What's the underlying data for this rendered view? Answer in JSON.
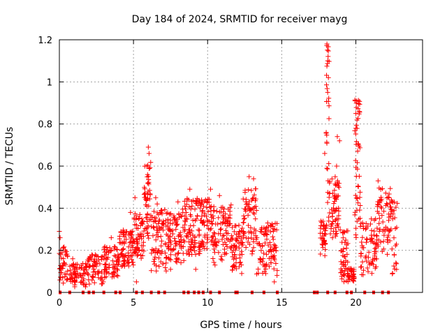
{
  "chart_data": {
    "type": "scatter",
    "title": "Day 184 of 2024, SRMTID for receiver mayg",
    "xlabel": "GPS time / hours",
    "ylabel": "SRMTID / TECUs",
    "xlim": [
      0,
      24.5
    ],
    "ylim": [
      0,
      1.2
    ],
    "x_ticks": [
      0,
      5,
      10,
      15,
      20
    ],
    "y_ticks": [
      0,
      0.2,
      0.4,
      0.6,
      0.8,
      1,
      1.2
    ],
    "grid": true,
    "marker": "plus",
    "color": "#ff0000",
    "series": [
      {
        "name": "SRMTID",
        "segments": [
          {
            "x0": 0.0,
            "x1": 0.6,
            "lo": 0.04,
            "hi": 0.22,
            "n": 40,
            "spikes": [
              [
                0.0,
                0.29
              ],
              [
                0.05,
                0.26
              ],
              [
                0.4,
                0.2
              ]
            ]
          },
          {
            "x0": 0.7,
            "x1": 1.9,
            "lo": 0.02,
            "hi": 0.14,
            "n": 70,
            "spikes": [
              [
                0.9,
                0.16
              ]
            ]
          },
          {
            "x0": 1.9,
            "x1": 3.0,
            "lo": 0.03,
            "hi": 0.18,
            "n": 60,
            "spikes": []
          },
          {
            "x0": 3.0,
            "x1": 4.0,
            "lo": 0.07,
            "hi": 0.22,
            "n": 70,
            "spikes": [
              [
                3.5,
                0.26
              ]
            ]
          },
          {
            "x0": 4.0,
            "x1": 5.0,
            "lo": 0.12,
            "hi": 0.3,
            "n": 80,
            "spikes": [
              [
                4.8,
                0.38
              ]
            ]
          },
          {
            "x0": 5.0,
            "x1": 5.7,
            "lo": 0.16,
            "hi": 0.38,
            "n": 60,
            "spikes": [
              [
                5.1,
                0.45
              ],
              [
                5.2,
                0.05
              ]
            ]
          },
          {
            "x0": 5.7,
            "x1": 6.2,
            "lo": 0.25,
            "hi": 0.62,
            "n": 50,
            "spikes": [
              [
                6.0,
                0.69
              ],
              [
                6.05,
                0.66
              ],
              [
                5.95,
                0.56
              ]
            ]
          },
          {
            "x0": 6.2,
            "x1": 7.3,
            "lo": 0.1,
            "hi": 0.4,
            "n": 80,
            "spikes": [
              [
                6.5,
                0.45
              ],
              [
                6.6,
                0.42
              ]
            ]
          },
          {
            "x0": 7.3,
            "x1": 8.3,
            "lo": 0.14,
            "hi": 0.38,
            "n": 80,
            "spikes": [
              [
                8.0,
                0.43
              ],
              [
                7.5,
                0.11
              ]
            ]
          },
          {
            "x0": 8.3,
            "x1": 9.3,
            "lo": 0.15,
            "hi": 0.45,
            "n": 80,
            "spikes": [
              [
                8.8,
                0.49
              ],
              [
                9.2,
                0.11
              ]
            ]
          },
          {
            "x0": 9.3,
            "x1": 10.3,
            "lo": 0.18,
            "hi": 0.45,
            "n": 80,
            "spikes": [
              [
                10.2,
                0.49
              ]
            ]
          },
          {
            "x0": 10.3,
            "x1": 11.6,
            "lo": 0.14,
            "hi": 0.42,
            "n": 90,
            "spikes": [
              [
                10.8,
                0.46
              ],
              [
                10.5,
                0.13
              ]
            ]
          },
          {
            "x0": 11.6,
            "x1": 12.4,
            "lo": 0.1,
            "hi": 0.32,
            "n": 60,
            "spikes": [
              [
                12.3,
                0.09
              ]
            ]
          },
          {
            "x0": 12.4,
            "x1": 13.3,
            "lo": 0.18,
            "hi": 0.5,
            "n": 70,
            "spikes": [
              [
                12.8,
                0.55
              ],
              [
                13.1,
                0.54
              ]
            ]
          },
          {
            "x0": 13.3,
            "x1": 14.7,
            "lo": 0.08,
            "hi": 0.33,
            "n": 90,
            "spikes": [
              [
                14.5,
                0.05
              ]
            ]
          },
          {
            "x0": 17.6,
            "x1": 18.0,
            "lo": 0.17,
            "hi": 0.34,
            "n": 35,
            "spikes": [
              [
                17.9,
                0.66
              ],
              [
                18.0,
                0.76
              ]
            ]
          },
          {
            "x0": 18.0,
            "x1": 18.2,
            "lo": 0.3,
            "hi": 1.18,
            "n": 30,
            "spikes": [
              [
                18.05,
                1.18
              ],
              [
                18.1,
                1.1
              ],
              [
                18.1,
                0.95
              ],
              [
                18.15,
                1.02
              ]
            ]
          },
          {
            "x0": 18.2,
            "x1": 18.9,
            "lo": 0.25,
            "hi": 0.55,
            "n": 60,
            "spikes": [
              [
                18.7,
                0.6
              ],
              [
                18.75,
                0.74
              ],
              [
                18.9,
                0.72
              ]
            ]
          },
          {
            "x0": 18.9,
            "x1": 19.5,
            "lo": 0.05,
            "hi": 0.3,
            "n": 50,
            "spikes": []
          },
          {
            "x0": 19.5,
            "x1": 19.9,
            "lo": 0.05,
            "hi": 0.12,
            "n": 30,
            "spikes": []
          },
          {
            "x0": 19.9,
            "x1": 20.3,
            "lo": 0.2,
            "hi": 0.92,
            "n": 50,
            "spikes": [
              [
                19.95,
                0.91
              ],
              [
                20.0,
                0.85
              ],
              [
                20.0,
                0.78
              ]
            ]
          },
          {
            "x0": 20.3,
            "x1": 21.4,
            "lo": 0.08,
            "hi": 0.35,
            "n": 70,
            "spikes": []
          },
          {
            "x0": 21.4,
            "x1": 22.4,
            "lo": 0.18,
            "hi": 0.5,
            "n": 70,
            "spikes": [
              [
                21.5,
                0.53
              ]
            ]
          },
          {
            "x0": 22.4,
            "x1": 22.8,
            "lo": 0.08,
            "hi": 0.44,
            "n": 25,
            "spikes": [
              [
                22.7,
                0.14
              ]
            ]
          }
        ]
      }
    ],
    "zero_points": [
      0.05,
      0.7,
      1.6,
      2.0,
      2.3,
      3.0,
      3.8,
      4.1,
      5.2,
      5.6,
      6.2,
      6.7,
      7.1,
      8.4,
      8.7,
      9.1,
      9.4,
      9.7,
      10.2,
      10.8,
      11.9,
      12.0,
      13.0,
      13.8,
      14.7,
      17.2,
      17.4,
      18.1,
      18.6,
      19.4,
      19.7,
      20.6,
      21.2,
      21.8,
      22.2
    ]
  }
}
